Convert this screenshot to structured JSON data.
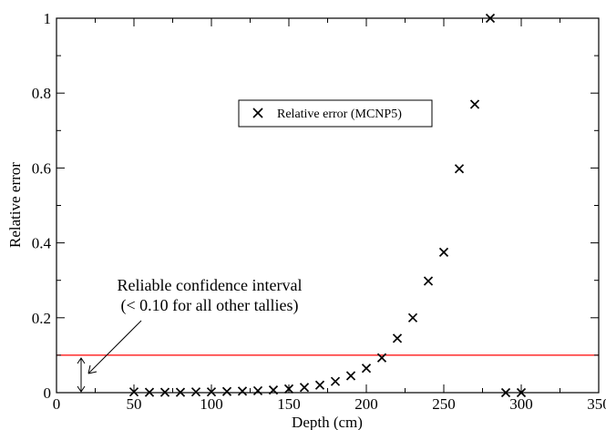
{
  "chart_data": {
    "type": "scatter",
    "xlabel": "Depth (cm)",
    "ylabel": "Relative error",
    "xlim": [
      0,
      350
    ],
    "ylim": [
      0,
      1
    ],
    "xticks": [
      0,
      50,
      100,
      150,
      200,
      250,
      300,
      350
    ],
    "yticks": [
      0,
      0.2,
      0.4,
      0.6,
      0.8,
      1
    ],
    "xtick_labels": [
      "0",
      "50",
      "100",
      "150",
      "200",
      "250",
      "300",
      "350"
    ],
    "ytick_labels": [
      "0",
      "0.2",
      "0.4",
      "0.6",
      "0.8",
      "1"
    ],
    "grid": false,
    "legend_position": "upper-center",
    "series": [
      {
        "name": "Relative error (MCNP5)",
        "marker": "x",
        "color": "#000000",
        "x": [
          50,
          60,
          70,
          80,
          90,
          100,
          110,
          120,
          130,
          140,
          150,
          160,
          170,
          180,
          190,
          200,
          210,
          220,
          230,
          240,
          250,
          260,
          270,
          280,
          290,
          300
        ],
        "y": [
          0.002,
          0.001,
          0.001,
          0.001,
          0.002,
          0.002,
          0.003,
          0.004,
          0.005,
          0.007,
          0.01,
          0.014,
          0.02,
          0.03,
          0.045,
          0.065,
          0.093,
          0.145,
          0.2,
          0.298,
          0.375,
          0.598,
          0.77,
          1.0,
          0.0,
          0.0
        ]
      }
    ],
    "reference_line": {
      "y": 0.1,
      "color": "#ff0000"
    },
    "annotation": {
      "line1": "Reliable confidence interval",
      "line2": "(< 0.10 for all other tallies)"
    }
  }
}
